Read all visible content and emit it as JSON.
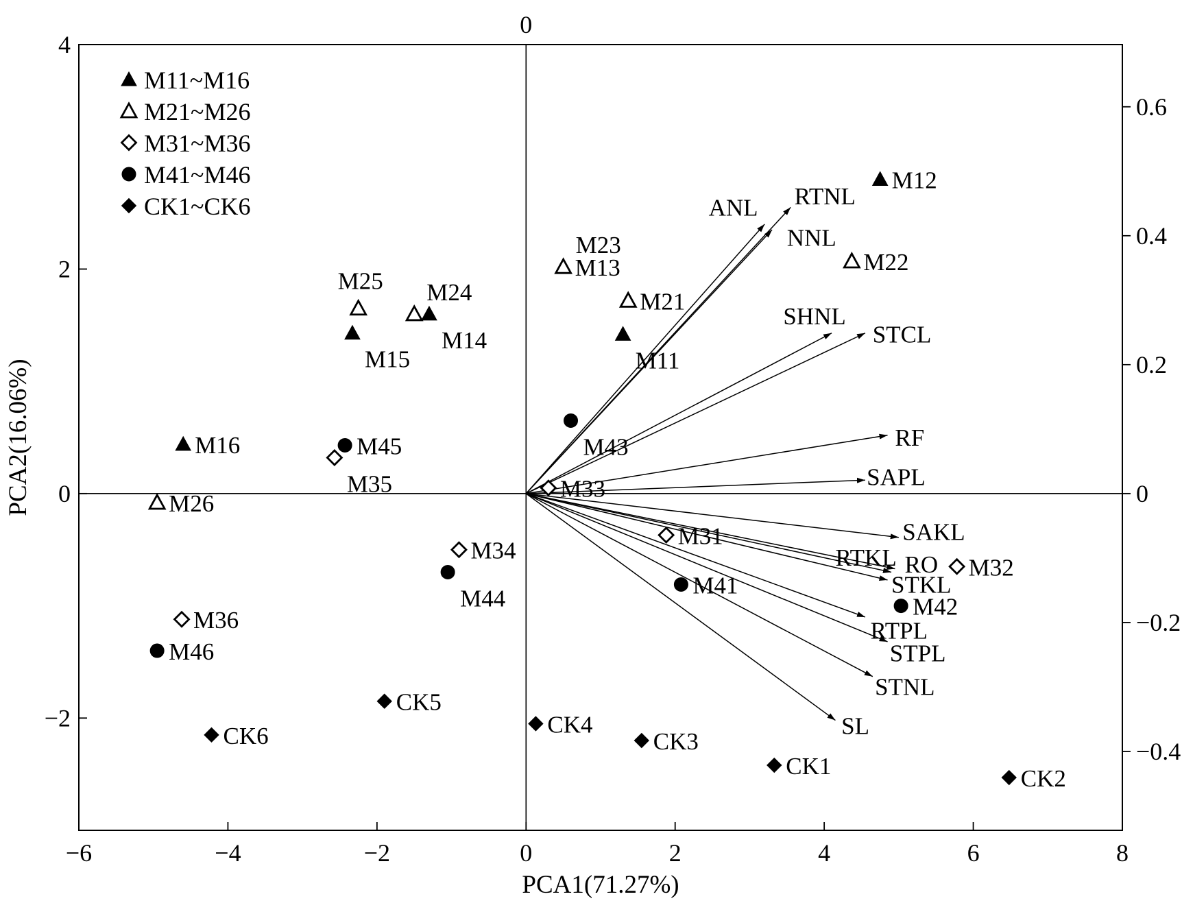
{
  "chart_data": {
    "type": "scatter",
    "subtype": "pca-biplot",
    "title": "",
    "top_label": "0",
    "xlabel": "PCA1(71.27%)",
    "ylabel": "PCA2(16.06%)",
    "xlim": [
      -6,
      8
    ],
    "ylim": [
      -3,
      4
    ],
    "y2lim": [
      -0.52239,
      0.69653
    ],
    "xticks": [
      {
        "v": -6,
        "label": "−6"
      },
      {
        "v": -4,
        "label": "−4"
      },
      {
        "v": -2,
        "label": "−2"
      },
      {
        "v": 0,
        "label": "0"
      },
      {
        "v": 2,
        "label": "2"
      },
      {
        "v": 4,
        "label": "4"
      },
      {
        "v": 6,
        "label": "6"
      },
      {
        "v": 8,
        "label": "8"
      }
    ],
    "yticks": [
      {
        "v": -2,
        "label": "−2"
      },
      {
        "v": 0,
        "label": "0"
      },
      {
        "v": 2,
        "label": "2"
      },
      {
        "v": 4,
        "label": "4"
      }
    ],
    "y2ticks": [
      {
        "v": -0.4,
        "label": "−0.4"
      },
      {
        "v": -0.2,
        "label": "−0.2"
      },
      {
        "v": 0,
        "label": "0"
      },
      {
        "v": 0.2,
        "label": "0.2"
      },
      {
        "v": 0.4,
        "label": "0.4"
      },
      {
        "v": 0.6,
        "label": "0.6"
      }
    ],
    "legend": {
      "position": "top-left",
      "entries": [
        {
          "marker": "triangle-filled",
          "label": "M11~M16"
        },
        {
          "marker": "triangle-open",
          "label": "M21~M26"
        },
        {
          "marker": "diamond-open",
          "label": "M31~M36"
        },
        {
          "marker": "circle-filled",
          "label": "M41~M46"
        },
        {
          "marker": "diamond-filled",
          "label": "CK1~CK6"
        }
      ]
    },
    "points": [
      {
        "label": "M11",
        "x": 1.3,
        "y": 1.42,
        "marker": "triangle-filled",
        "label_pos": "below-right"
      },
      {
        "label": "M12",
        "x": 4.75,
        "y": 2.8,
        "marker": "triangle-filled",
        "label_pos": "right"
      },
      {
        "label": "M13",
        "x": 0.5,
        "y": 2.02,
        "marker": "triangle-filled",
        "label_pos": "right"
      },
      {
        "label": "M14",
        "x": -1.3,
        "y": 1.6,
        "marker": "triangle-filled",
        "label_pos": "below-right"
      },
      {
        "label": "M15",
        "x": -2.33,
        "y": 1.43,
        "marker": "triangle-filled",
        "label_pos": "below-right"
      },
      {
        "label": "M16",
        "x": -4.6,
        "y": 0.44,
        "marker": "triangle-filled",
        "label_pos": "right"
      },
      {
        "label": "M21",
        "x": 1.37,
        "y": 1.72,
        "marker": "triangle-open",
        "label_pos": "right"
      },
      {
        "label": "M22",
        "x": 4.37,
        "y": 2.07,
        "marker": "triangle-open",
        "label_pos": "right"
      },
      {
        "label": "M23",
        "x": 0.5,
        "y": 2.02,
        "marker": "triangle-open",
        "label_pos": "above-right"
      },
      {
        "label": "M24",
        "x": -1.5,
        "y": 1.6,
        "marker": "triangle-open",
        "label_pos": "above-right"
      },
      {
        "label": "M25",
        "x": -2.25,
        "y": 1.65,
        "marker": "triangle-open",
        "label_pos": "above"
      },
      {
        "label": "M26",
        "x": -4.95,
        "y": -0.08,
        "marker": "triangle-open",
        "label_pos": "right"
      },
      {
        "label": "M31",
        "x": 1.88,
        "y": -0.37,
        "marker": "diamond-open",
        "label_pos": "right"
      },
      {
        "label": "M32",
        "x": 5.78,
        "y": -0.65,
        "marker": "diamond-open",
        "label_pos": "right"
      },
      {
        "label": "M33",
        "x": 0.3,
        "y": 0.05,
        "marker": "diamond-open",
        "label_pos": "right"
      },
      {
        "label": "M34",
        "x": -0.9,
        "y": -0.5,
        "marker": "diamond-open",
        "label_pos": "right"
      },
      {
        "label": "M35",
        "x": -2.57,
        "y": 0.32,
        "marker": "diamond-open",
        "label_pos": "below-right"
      },
      {
        "label": "M36",
        "x": -4.62,
        "y": -1.12,
        "marker": "diamond-open",
        "label_pos": "right"
      },
      {
        "label": "M41",
        "x": 2.08,
        "y": -0.81,
        "marker": "circle-filled",
        "label_pos": "right"
      },
      {
        "label": "M42",
        "x": 5.03,
        "y": -1.0,
        "marker": "circle-filled",
        "label_pos": "right"
      },
      {
        "label": "M43",
        "x": 0.6,
        "y": 0.65,
        "marker": "circle-filled",
        "label_pos": "below-right"
      },
      {
        "label": "M44",
        "x": -1.05,
        "y": -0.7,
        "marker": "circle-filled",
        "label_pos": "below-right"
      },
      {
        "label": "M45",
        "x": -2.43,
        "y": 0.43,
        "marker": "circle-filled",
        "label_pos": "right"
      },
      {
        "label": "M46",
        "x": -4.95,
        "y": -1.4,
        "marker": "circle-filled",
        "label_pos": "right"
      },
      {
        "label": "CK1",
        "x": 3.33,
        "y": -2.42,
        "marker": "diamond-filled",
        "label_pos": "right"
      },
      {
        "label": "CK2",
        "x": 6.48,
        "y": -2.53,
        "marker": "diamond-filled",
        "label_pos": "right"
      },
      {
        "label": "CK3",
        "x": 1.55,
        "y": -2.2,
        "marker": "diamond-filled",
        "label_pos": "right"
      },
      {
        "label": "CK4",
        "x": 0.13,
        "y": -2.05,
        "marker": "diamond-filled",
        "label_pos": "right"
      },
      {
        "label": "CK5",
        "x": -1.9,
        "y": -1.85,
        "marker": "diamond-filled",
        "label_pos": "right"
      },
      {
        "label": "CK6",
        "x": -4.22,
        "y": -2.15,
        "marker": "diamond-filled",
        "label_pos": "right"
      }
    ],
    "loadings": [
      {
        "label": "ANL",
        "x": 3.2,
        "y": 2.4,
        "label_x": 2.45,
        "label_y": 2.55
      },
      {
        "label": "RTNL",
        "x": 3.55,
        "y": 2.55,
        "label_x": 3.6,
        "label_y": 2.65
      },
      {
        "label": "NNL",
        "x": 3.3,
        "y": 2.35,
        "label_x": 3.5,
        "label_y": 2.28
      },
      {
        "label": "SHNL",
        "x": 4.1,
        "y": 1.43,
        "label_x": 3.45,
        "label_y": 1.58
      },
      {
        "label": "STCL",
        "x": 4.55,
        "y": 1.43,
        "label_x": 4.65,
        "label_y": 1.42
      },
      {
        "label": "RF",
        "x": 4.85,
        "y": 0.52,
        "label_x": 4.95,
        "label_y": 0.5
      },
      {
        "label": "SAPL",
        "x": 4.55,
        "y": 0.12,
        "label_x": 4.57,
        "label_y": 0.15
      },
      {
        "label": "SAKL",
        "x": 5.0,
        "y": -0.39,
        "label_x": 5.05,
        "label_y": -0.34
      },
      {
        "label": "RTKL",
        "x": 4.9,
        "y": -0.7,
        "label_x": 4.15,
        "label_y": -0.57
      },
      {
        "label": "RO",
        "x": 4.95,
        "y": -0.67,
        "label_x": 5.08,
        "label_y": -0.63
      },
      {
        "label": "STKL",
        "x": 4.85,
        "y": -0.77,
        "label_x": 4.9,
        "label_y": -0.81
      },
      {
        "label": "RTPL",
        "x": 4.55,
        "y": -1.1,
        "label_x": 4.62,
        "label_y": -1.22
      },
      {
        "label": "STPL",
        "x": 4.85,
        "y": -1.32,
        "label_x": 4.88,
        "label_y": -1.42
      },
      {
        "label": "STNL",
        "x": 4.65,
        "y": -1.63,
        "label_x": 4.68,
        "label_y": -1.72
      },
      {
        "label": "SL",
        "x": 4.15,
        "y": -2.02,
        "label_x": 4.23,
        "label_y": -2.07
      }
    ]
  }
}
